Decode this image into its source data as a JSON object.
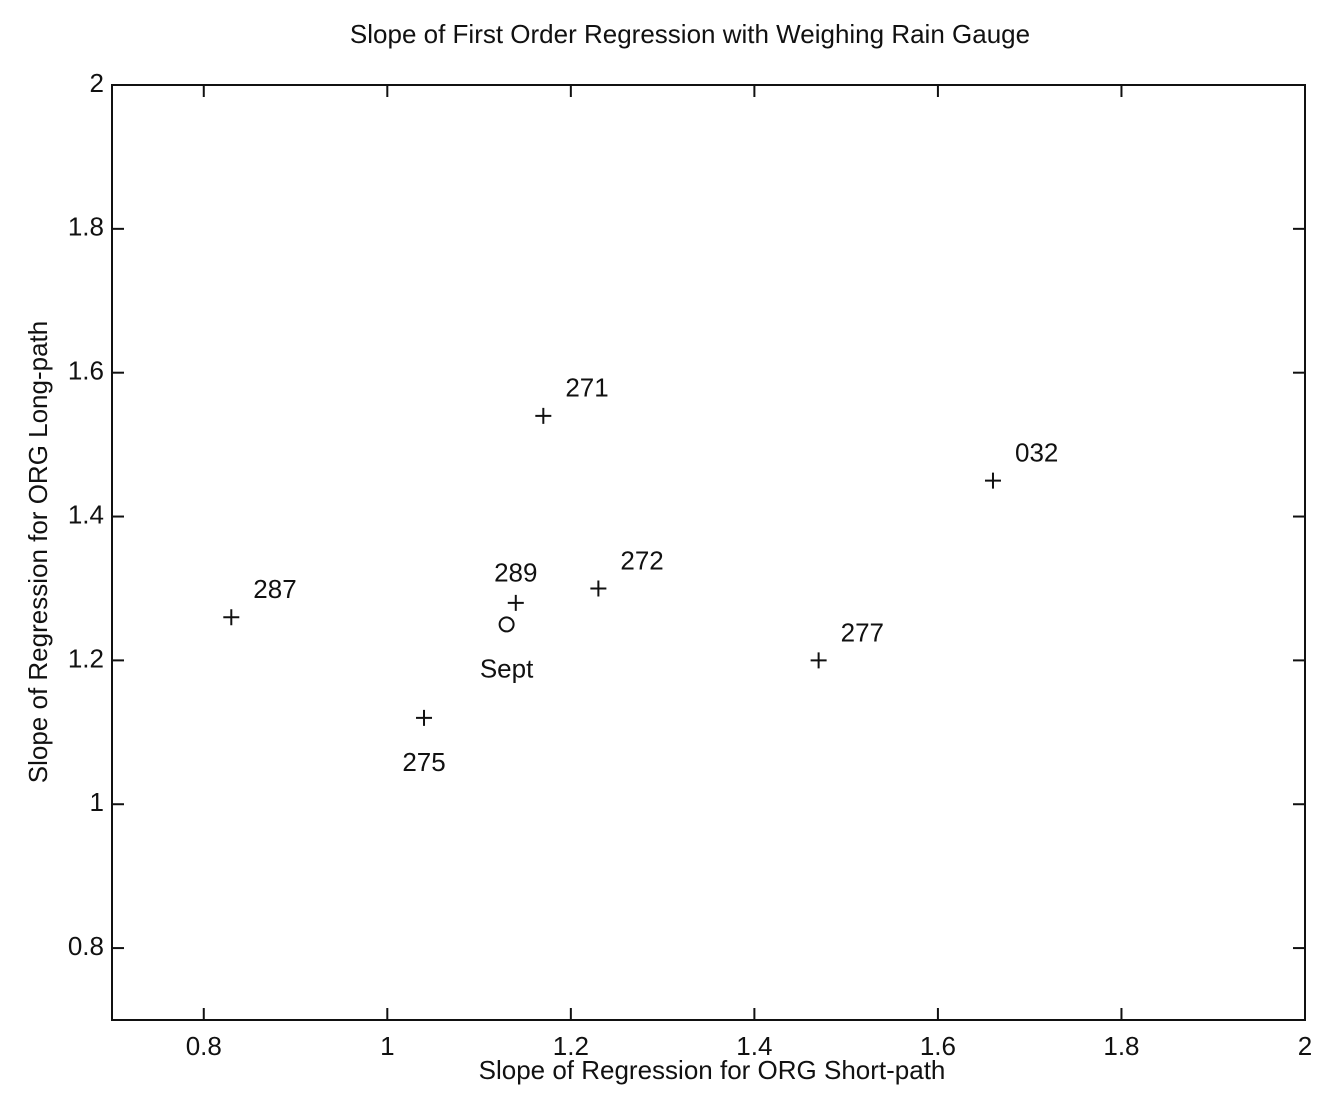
{
  "chart_data": {
    "type": "scatter",
    "title": "Slope of First Order Regression with Weighing Rain Gauge",
    "x_label": "Slope of Regression for ORG Short-path",
    "y_label": "Slope of Regression for ORG Long-path",
    "xlim": [
      0.7,
      2
    ],
    "ylim": [
      0.7,
      2
    ],
    "xticks": [
      0.8,
      1,
      1.2,
      1.4,
      1.6,
      1.8,
      2
    ],
    "yticks": [
      0.8,
      1,
      1.2,
      1.4,
      1.6,
      1.8,
      2
    ],
    "series": [
      {
        "marker": "+",
        "color": "#111111",
        "x": [
          0.83,
          1.04,
          1.14,
          1.17,
          1.23,
          1.47,
          1.66
        ],
        "y": [
          1.26,
          1.12,
          1.28,
          1.54,
          1.3,
          1.2,
          1.45
        ],
        "labels": [
          "287",
          "275",
          "289",
          "271",
          "272",
          "277",
          "032"
        ],
        "label_positions": [
          "above-right",
          "below",
          "above",
          "above-right",
          "above-right",
          "above-right",
          "above-right"
        ]
      },
      {
        "marker": "o",
        "color": "#111111",
        "x": [
          1.13
        ],
        "y": [
          1.25
        ],
        "labels": [
          "Sept"
        ],
        "label_positions": [
          "below"
        ]
      }
    ]
  }
}
